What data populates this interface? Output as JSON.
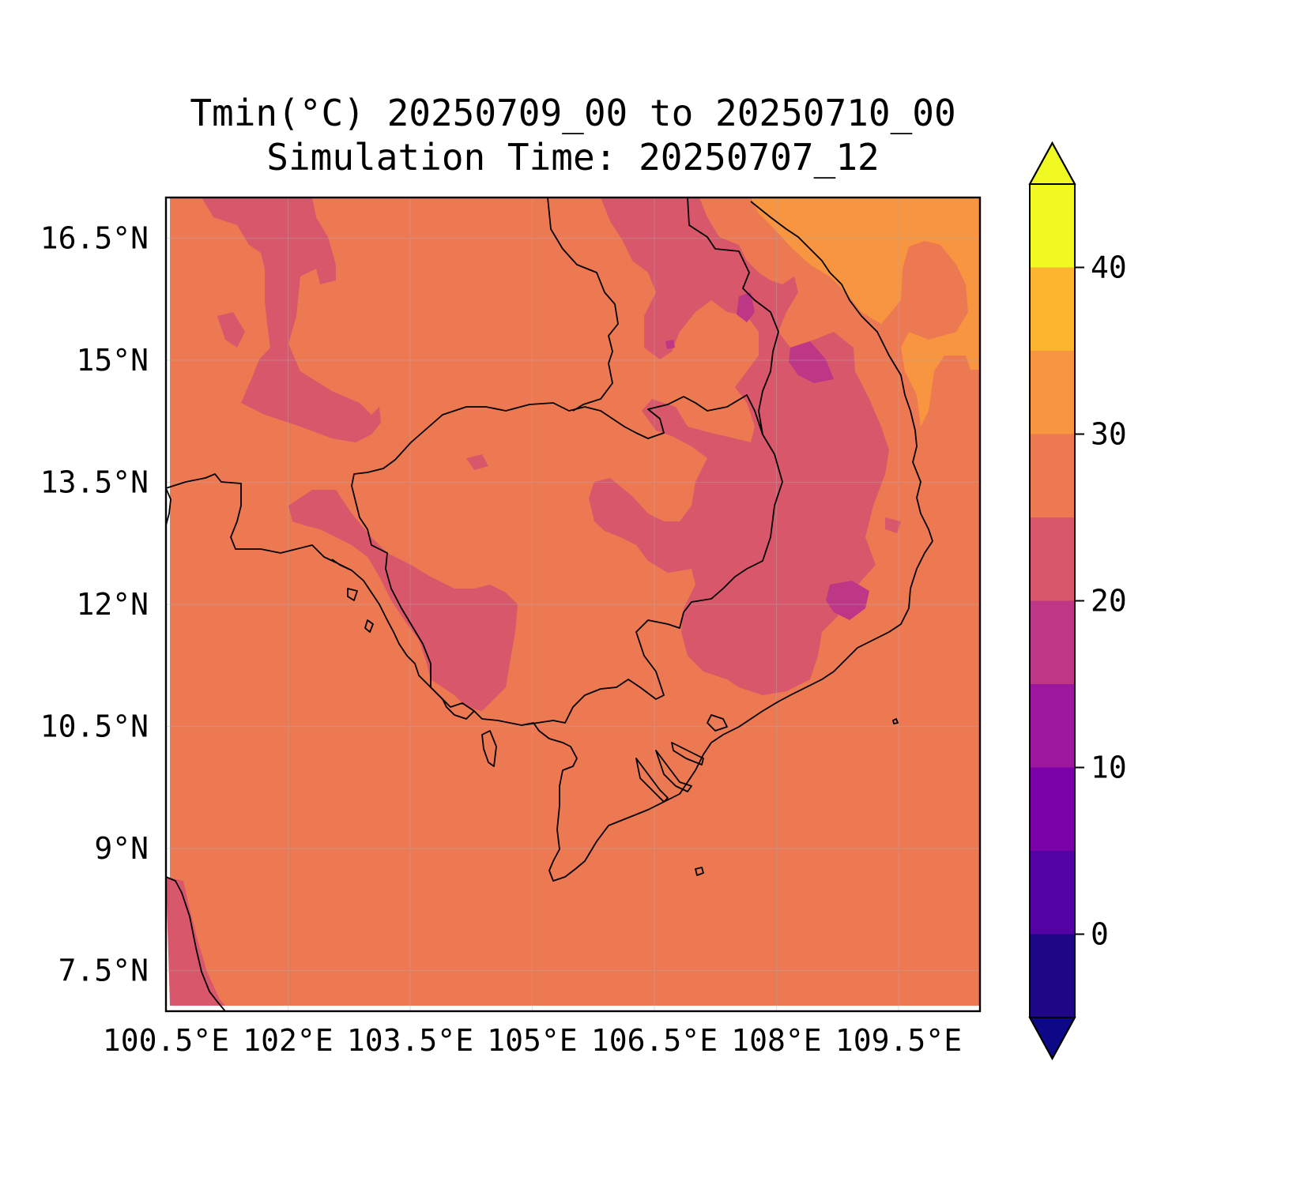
{
  "title": {
    "line1": "Tmin(°C) 20250709_00 to 20250710_00",
    "line2": "Simulation Time: 20250707_12"
  },
  "map": {
    "region": "Indochina (Cambodia, southern Vietnam, Thailand, Laos)",
    "extent": {
      "lon": [
        100.5,
        110.5
      ],
      "lat": [
        7.0,
        17.0
      ]
    },
    "lon_ticks": [
      100.5,
      102,
      103.5,
      105,
      106.5,
      108,
      109.5
    ],
    "lon_tick_labels": [
      "100.5°E",
      "102°E",
      "103.5°E",
      "105°E",
      "106.5°E",
      "108°E",
      "109.5°E"
    ],
    "lat_ticks": [
      16.5,
      15,
      13.5,
      12,
      10.5,
      9,
      7.5
    ],
    "lat_tick_labels": [
      "16.5°N",
      "15°N",
      "13.5°N",
      "12°N",
      "10.5°N",
      "9°N",
      "7.5°N"
    ],
    "gridlines": true,
    "coastlines": true,
    "borders": true,
    "background_class": "25-30",
    "field_description_classes": [
      "20-25",
      "25-30",
      "30-35",
      "15-20"
    ]
  },
  "colorbar": {
    "levels": [
      -5,
      0,
      5,
      10,
      15,
      20,
      25,
      30,
      35,
      40,
      45
    ],
    "colors": [
      "#1d0787",
      "#5302a3",
      "#7b02a8",
      "#9c179e",
      "#bd3786",
      "#d8576b",
      "#ed7953",
      "#f89540",
      "#fdb42f",
      "#f0f921"
    ],
    "over_color": "#f0f921",
    "under_color": "#0d0887",
    "extend": "both",
    "ticks": [
      0,
      10,
      20,
      30,
      40
    ],
    "tick_labels": [
      "0",
      "10",
      "20",
      "30",
      "40"
    ]
  },
  "palette": {
    "c15_20": "#bd3786",
    "c20_25": "#d8576b",
    "c25_30": "#ed7953",
    "c30_35": "#f89540"
  }
}
